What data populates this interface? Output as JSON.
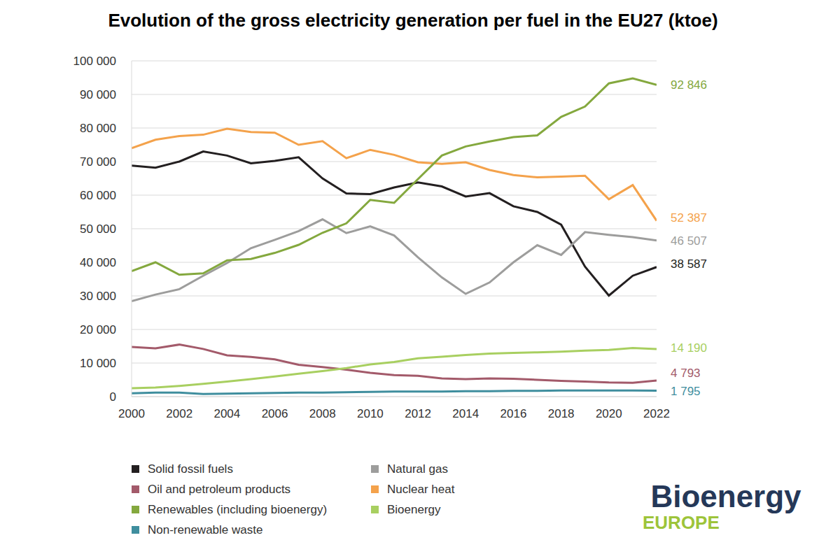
{
  "chart_data": {
    "type": "line",
    "title": "Evolution of the gross electricity generation per fuel in the EU27 (ktoe)",
    "x": [
      2000,
      2001,
      2002,
      2003,
      2004,
      2005,
      2006,
      2007,
      2008,
      2009,
      2010,
      2011,
      2012,
      2013,
      2014,
      2015,
      2016,
      2017,
      2018,
      2019,
      2020,
      2021,
      2022
    ],
    "xlim": [
      2000,
      2022
    ],
    "xticks": [
      2000,
      2002,
      2004,
      2006,
      2008,
      2010,
      2012,
      2014,
      2016,
      2018,
      2020,
      2022
    ],
    "ylim": [
      0,
      100000
    ],
    "yticks": [
      {
        "value": 0,
        "label": "0"
      },
      {
        "value": 10000,
        "label": "10 000"
      },
      {
        "value": 20000,
        "label": "20 000"
      },
      {
        "value": 30000,
        "label": "30 000"
      },
      {
        "value": 40000,
        "label": "40 000"
      },
      {
        "value": 50000,
        "label": "50 000"
      },
      {
        "value": 60000,
        "label": "60 000"
      },
      {
        "value": 70000,
        "label": "70 000"
      },
      {
        "value": 80000,
        "label": "80 000"
      },
      {
        "value": 90000,
        "label": "90 000"
      },
      {
        "value": 100000,
        "label": "100 000"
      }
    ],
    "grid": true,
    "legend": "bottom",
    "series": [
      {
        "name": "Solid fossil fuels",
        "color": "#231f20",
        "values": [
          68800,
          68200,
          70000,
          73000,
          71800,
          69500,
          70200,
          71300,
          65000,
          60500,
          60300,
          62300,
          63800,
          62600,
          59600,
          60600,
          56700,
          55000,
          51200,
          38700,
          30100,
          36000,
          38587
        ],
        "value_labels": [
          null,
          null,
          null,
          null,
          null,
          null,
          null,
          null,
          null,
          null,
          null,
          null,
          null,
          null,
          null,
          null,
          null,
          null,
          null,
          null,
          null,
          null,
          "38 587"
        ]
      },
      {
        "name": "Natural gas",
        "color": "#9d9d9c",
        "values": [
          28400,
          30400,
          32000,
          36000,
          39800,
          44200,
          46700,
          49300,
          52800,
          48700,
          50700,
          48000,
          41500,
          35500,
          30600,
          34000,
          40000,
          45100,
          42200,
          49000,
          48200,
          47500,
          46507
        ],
        "value_labels": [
          null,
          null,
          null,
          null,
          null,
          null,
          null,
          null,
          null,
          null,
          null,
          null,
          null,
          null,
          null,
          null,
          null,
          null,
          null,
          null,
          null,
          null,
          "46 507"
        ]
      },
      {
        "name": "Oil and petroleum products",
        "color": "#a35a6a",
        "values": [
          14800,
          14400,
          15500,
          14200,
          12300,
          11800,
          11100,
          9500,
          8800,
          8000,
          7100,
          6400,
          6200,
          5400,
          5200,
          5400,
          5300,
          5000,
          4700,
          4500,
          4200,
          4100,
          4793
        ],
        "value_labels": [
          null,
          null,
          null,
          null,
          null,
          null,
          null,
          null,
          null,
          null,
          null,
          null,
          null,
          null,
          null,
          null,
          null,
          null,
          null,
          null,
          null,
          null,
          "4 793"
        ]
      },
      {
        "name": "Nuclear heat",
        "color": "#f4a24b",
        "values": [
          74000,
          76500,
          77600,
          78000,
          79800,
          78800,
          78600,
          75000,
          76100,
          71000,
          73500,
          72000,
          69800,
          69300,
          69800,
          67500,
          66000,
          65300,
          65500,
          65800,
          58800,
          63000,
          52387
        ],
        "value_labels": [
          null,
          null,
          null,
          null,
          null,
          null,
          null,
          null,
          null,
          null,
          null,
          null,
          null,
          null,
          null,
          null,
          null,
          null,
          null,
          null,
          null,
          null,
          "52 387"
        ]
      },
      {
        "name": "Renewables (including bioenergy)",
        "color": "#84a83e",
        "values": [
          37400,
          40000,
          36300,
          36700,
          40600,
          41000,
          42800,
          45200,
          48800,
          51600,
          58600,
          57700,
          64800,
          71800,
          74500,
          76000,
          77300,
          77800,
          83300,
          86400,
          93300,
          94800,
          92846
        ],
        "value_labels": [
          null,
          null,
          null,
          null,
          null,
          null,
          null,
          null,
          null,
          null,
          null,
          null,
          null,
          null,
          null,
          null,
          null,
          null,
          null,
          null,
          null,
          null,
          "92 846"
        ]
      },
      {
        "name": "Bioenergy",
        "color": "#a8cf60",
        "values": [
          2500,
          2700,
          3200,
          3800,
          4500,
          5200,
          6000,
          6800,
          7600,
          8500,
          9600,
          10300,
          11400,
          11900,
          12400,
          12800,
          13000,
          13200,
          13400,
          13700,
          13900,
          14500,
          14190
        ],
        "value_labels": [
          null,
          null,
          null,
          null,
          null,
          null,
          null,
          null,
          null,
          null,
          null,
          null,
          null,
          null,
          null,
          null,
          null,
          null,
          null,
          null,
          null,
          null,
          "14 190"
        ]
      },
      {
        "name": "Non-renewable waste",
        "color": "#3f8e9e",
        "values": [
          1000,
          1200,
          1200,
          800,
          900,
          1000,
          1100,
          1200,
          1200,
          1300,
          1400,
          1500,
          1500,
          1500,
          1600,
          1600,
          1700,
          1700,
          1800,
          1800,
          1800,
          1800,
          1795
        ],
        "value_labels": [
          null,
          null,
          null,
          null,
          null,
          null,
          null,
          null,
          null,
          null,
          null,
          null,
          null,
          null,
          null,
          null,
          null,
          null,
          null,
          null,
          null,
          null,
          "1 795"
        ]
      }
    ],
    "logo": {
      "text": "Bioenergy",
      "subtext": "EUROPE"
    }
  }
}
